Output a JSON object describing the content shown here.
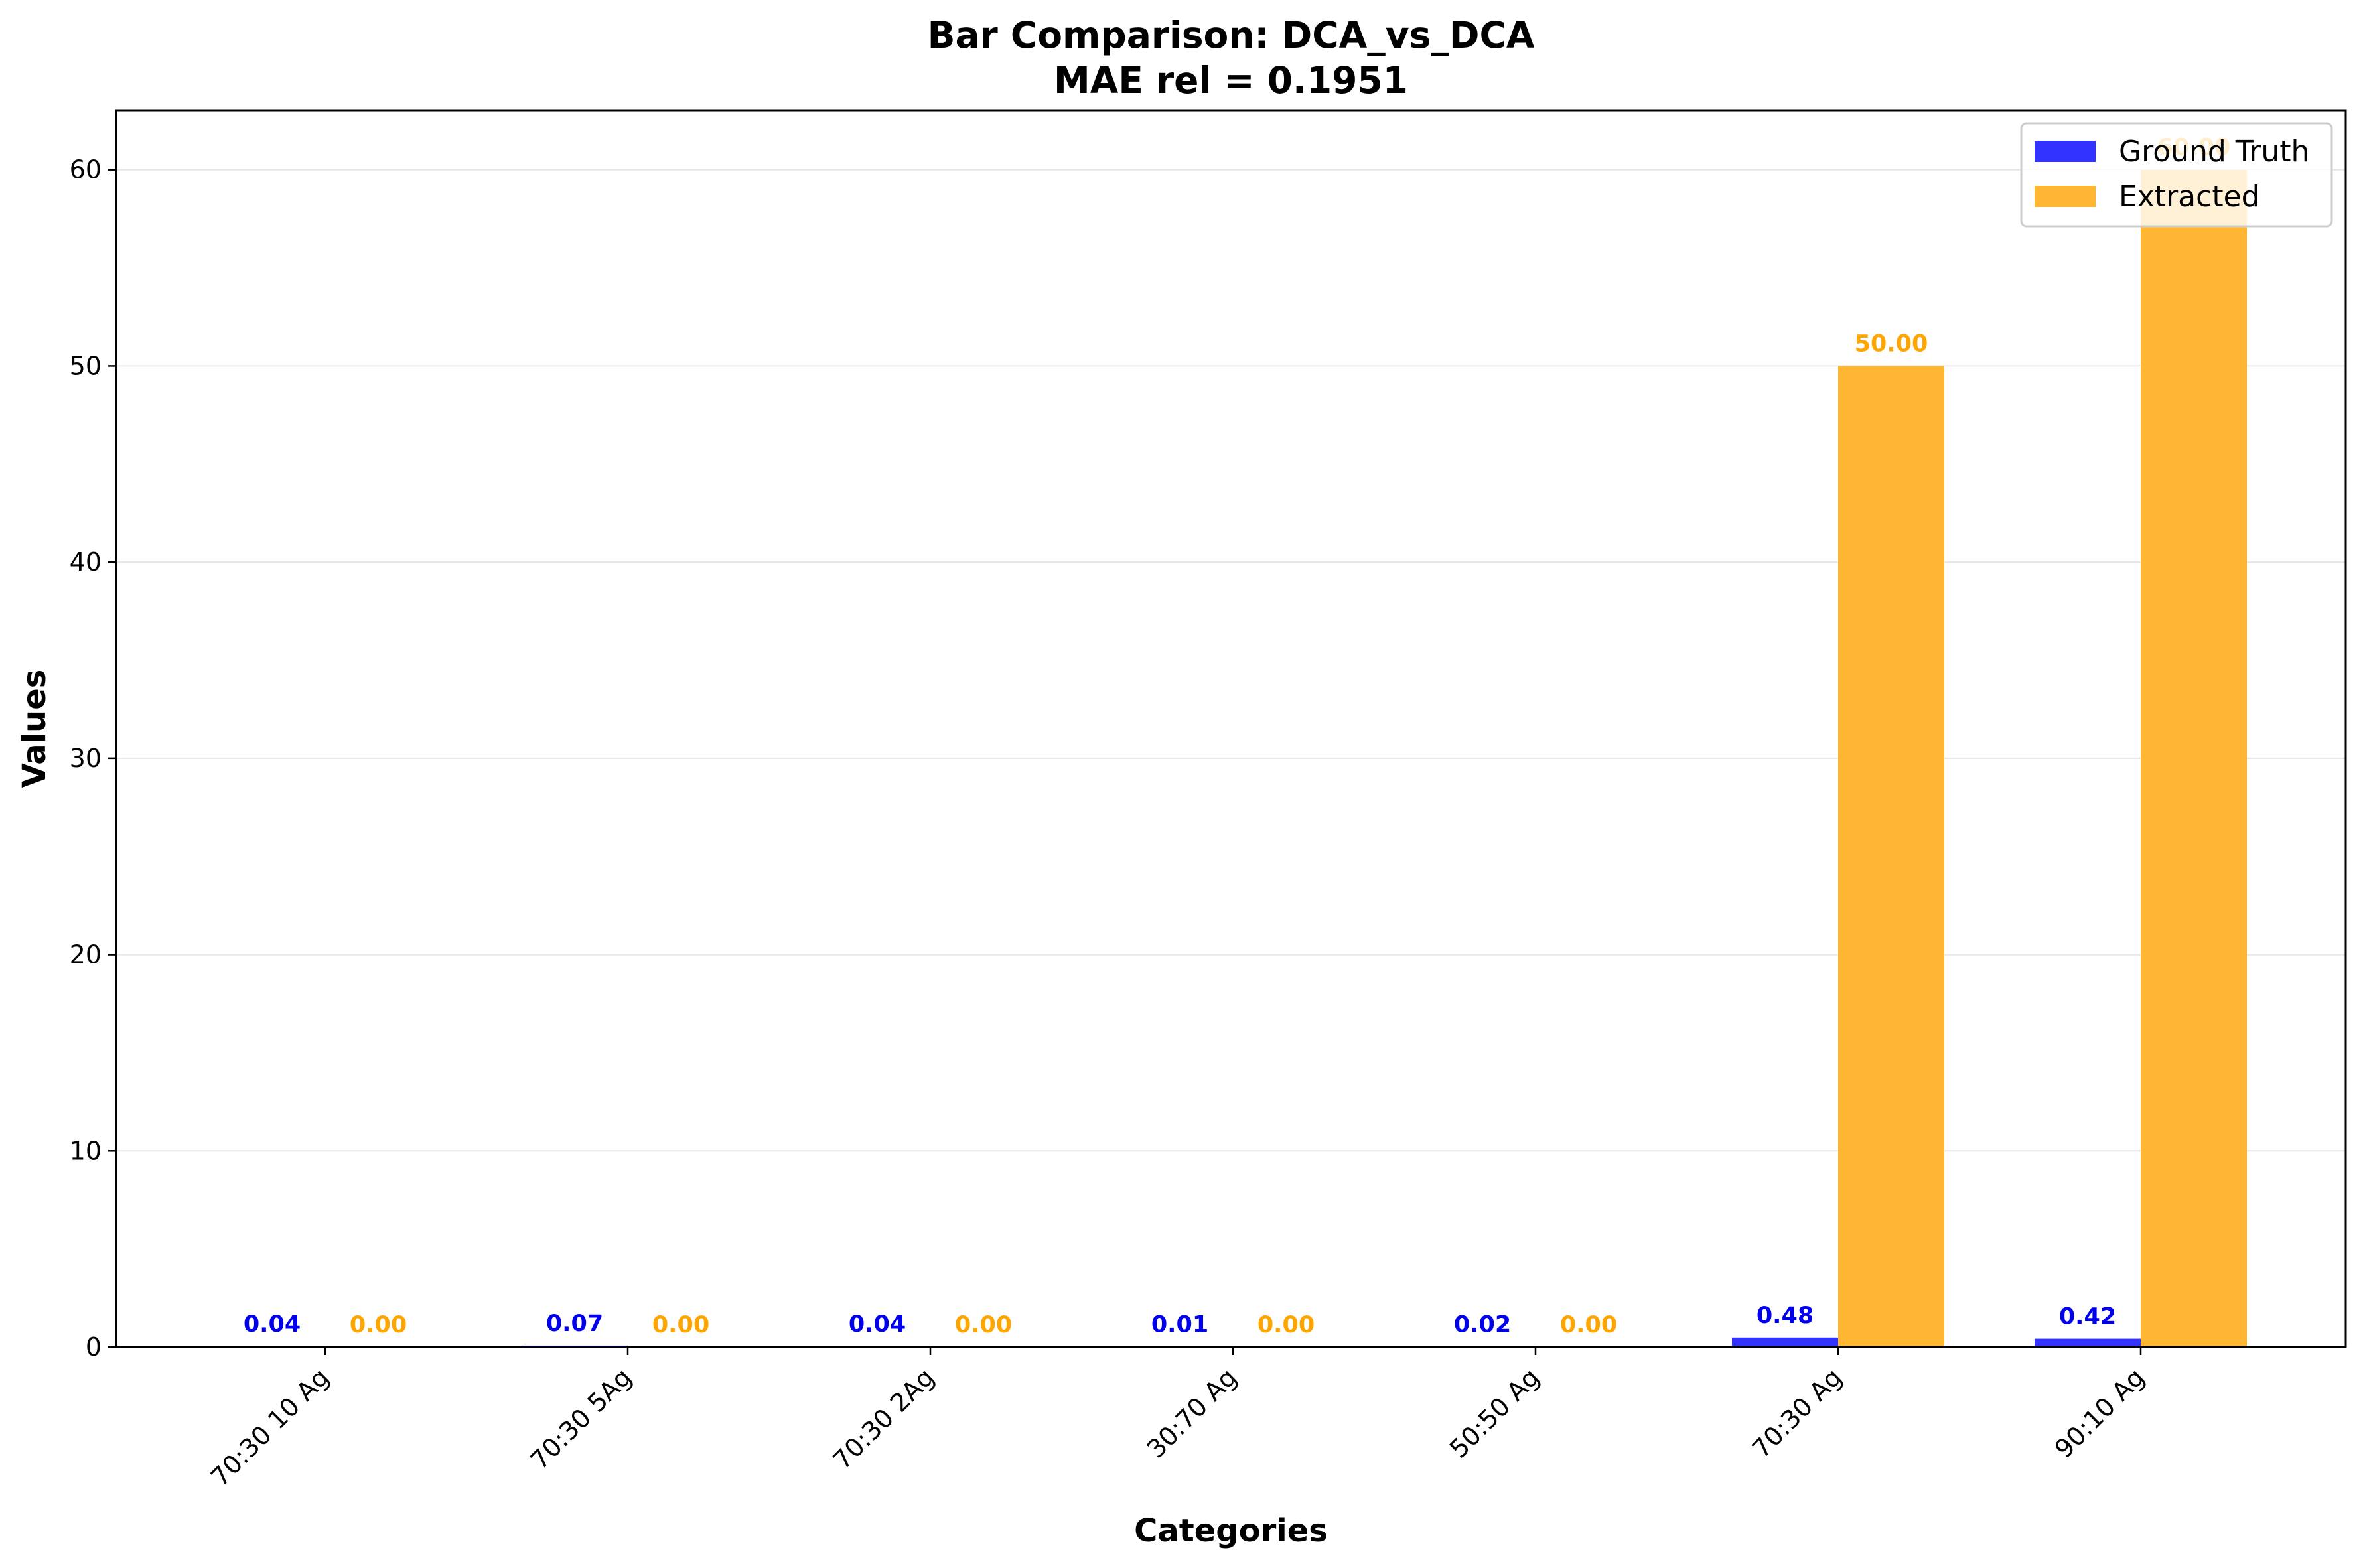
{
  "chart_data": {
    "type": "bar",
    "title": "Bar Comparison: DCA_vs_DCA",
    "subtitle": "MAE rel = 0.1951",
    "xlabel": "Categories",
    "ylabel": "Values",
    "ylim": [
      0,
      63
    ],
    "yticks": [
      0,
      10,
      20,
      30,
      40,
      50,
      60
    ],
    "grid": "horizontal",
    "legend_position": "top-right",
    "categories": [
      "70:30 10 Ag",
      "70:30 5Ag",
      "70:30 2Ag",
      "30:70 Ag",
      "50:50 Ag",
      "70:30 Ag",
      "90:10 Ag"
    ],
    "series": [
      {
        "name": "Ground Truth",
        "color": "#3333ff",
        "label_color": "#0000ee",
        "values": [
          0.04,
          0.07,
          0.04,
          0.01,
          0.02,
          0.48,
          0.42
        ],
        "labels": [
          "0.04",
          "0.07",
          "0.04",
          "0.01",
          "0.02",
          "0.48",
          "0.42"
        ]
      },
      {
        "name": "Extracted",
        "color": "#ffb733",
        "label_color": "#ffa500",
        "values": [
          0,
          0,
          0,
          0,
          0,
          50,
          60
        ],
        "labels": [
          "0.00",
          "0.00",
          "0.00",
          "0.00",
          "0.00",
          "50.00",
          "60.00"
        ]
      }
    ]
  }
}
